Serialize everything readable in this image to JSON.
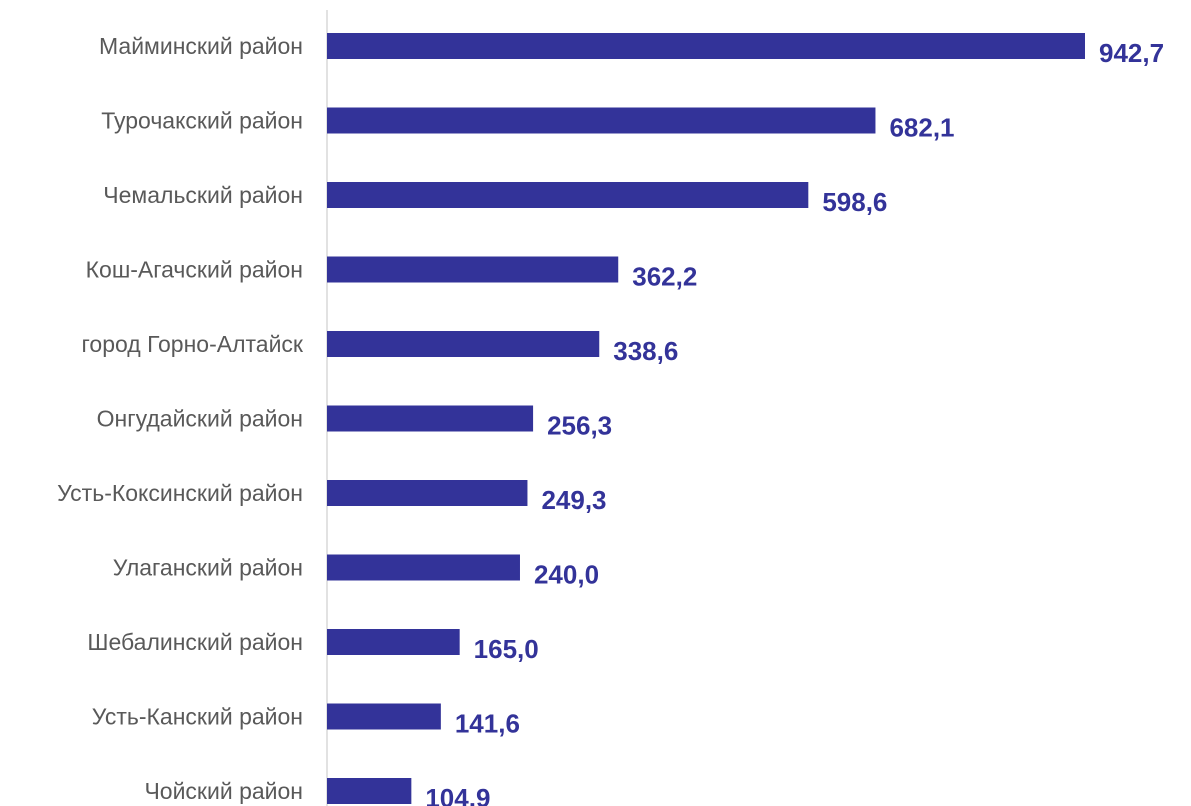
{
  "chart_data": {
    "type": "bar",
    "orientation": "horizontal",
    "categories": [
      "Майминский район",
      "Турочакский район",
      "Чемальский район",
      "Кош-Агачский район",
      "город Горно-Алтайск",
      "Онгудайский район",
      "Усть-Коксинский район",
      "Улаганский район",
      "Шебалинский район",
      "Усть-Канский район",
      "Чойский район"
    ],
    "values": [
      942.7,
      682.1,
      598.6,
      362.2,
      338.6,
      256.3,
      249.3,
      240.0,
      165.0,
      141.6,
      104.9
    ],
    "value_labels": [
      "942,7",
      "682,1",
      "598,6",
      "362,2",
      "338,6",
      "256,3",
      "249,3",
      "240,0",
      "165,0",
      "141,6",
      "104,9"
    ],
    "title": "",
    "xlabel": "",
    "ylabel": "",
    "xlim": [
      0,
      942.7
    ],
    "grid": false,
    "legend": "none",
    "colors": {
      "bar": "#333399",
      "value_label": "#333399",
      "category_label": "#595959",
      "axis": "#d9d9d9"
    }
  }
}
